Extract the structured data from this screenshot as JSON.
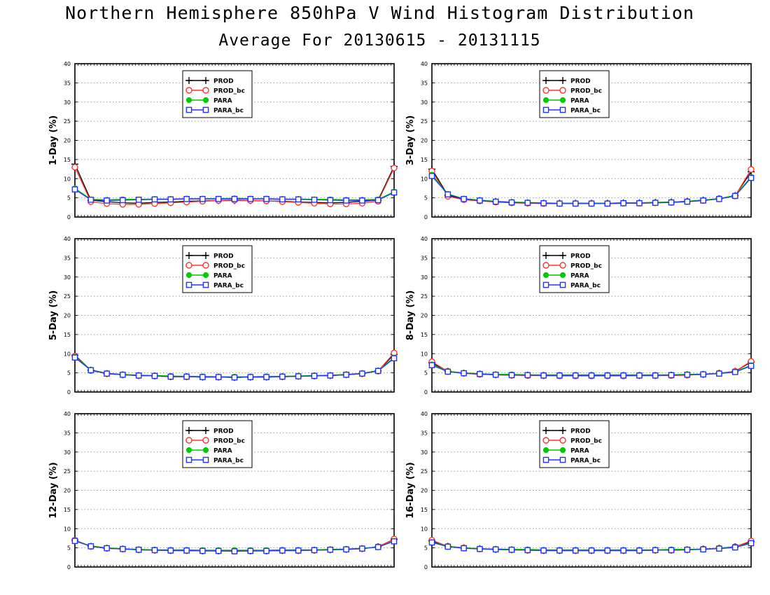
{
  "title": "Northern Hemisphere 850hPa V Wind Histogram Distribution",
  "subtitle": "Average For 20130615 - 20131115",
  "colors": {
    "PROD": "#000000",
    "PROD_bc": "#ff3333",
    "PARA": "#00cc00",
    "PARA_bc": "#2233ff",
    "grid": "#9a9a9a"
  },
  "legend_entries": [
    "PROD",
    "PROD_bc",
    "PARA",
    "PARA_bc"
  ],
  "chart_data": [
    {
      "type": "line",
      "ylabel": "1-Day (%)",
      "ylim": [
        0,
        40
      ],
      "yticks": [
        0,
        5,
        10,
        15,
        20,
        25,
        30,
        35,
        40
      ],
      "grid": true,
      "legend_position": "top-center",
      "x": [
        1,
        2,
        3,
        4,
        5,
        6,
        7,
        8,
        9,
        10,
        11,
        12,
        13,
        14,
        15,
        16,
        17,
        18,
        19,
        20,
        21
      ],
      "series": [
        {
          "name": "PROD",
          "values": [
            13.8,
            4.4,
            4.0,
            3.7,
            3.6,
            3.8,
            3.9,
            4.1,
            4.2,
            4.3,
            4.3,
            4.3,
            4.2,
            4.1,
            3.9,
            3.8,
            3.7,
            3.8,
            4.1,
            4.4,
            13.2
          ]
        },
        {
          "name": "PROD_bc",
          "values": [
            13.0,
            4.0,
            3.5,
            3.3,
            3.3,
            3.5,
            3.7,
            3.9,
            4.1,
            4.3,
            4.4,
            4.3,
            4.2,
            4.0,
            3.8,
            3.6,
            3.4,
            3.4,
            3.6,
            4.1,
            12.8
          ]
        },
        {
          "name": "PARA",
          "values": [
            7.5,
            4.6,
            4.5,
            4.6,
            4.6,
            4.7,
            4.7,
            4.8,
            4.8,
            4.8,
            4.9,
            4.8,
            4.8,
            4.7,
            4.7,
            4.6,
            4.6,
            4.5,
            4.5,
            4.6,
            6.6
          ]
        },
        {
          "name": "PARA_bc",
          "values": [
            7.2,
            4.5,
            4.3,
            4.4,
            4.5,
            4.6,
            4.6,
            4.7,
            4.7,
            4.7,
            4.7,
            4.7,
            4.7,
            4.6,
            4.6,
            4.5,
            4.4,
            4.3,
            4.3,
            4.4,
            6.4
          ]
        }
      ]
    },
    {
      "type": "line",
      "ylabel": "3-Day (%)",
      "ylim": [
        0,
        40
      ],
      "yticks": [
        0,
        5,
        10,
        15,
        20,
        25,
        30,
        35,
        40
      ],
      "grid": true,
      "legend_position": "top-center",
      "x": [
        1,
        2,
        3,
        4,
        5,
        6,
        7,
        8,
        9,
        10,
        11,
        12,
        13,
        14,
        15,
        16,
        17,
        18,
        19,
        20,
        21
      ],
      "series": [
        {
          "name": "PROD",
          "values": [
            12.5,
            5.7,
            4.6,
            4.3,
            4.0,
            3.8,
            3.7,
            3.6,
            3.6,
            3.6,
            3.6,
            3.6,
            3.7,
            3.7,
            3.8,
            3.9,
            4.1,
            4.4,
            4.8,
            5.6,
            11.8
          ]
        },
        {
          "name": "PROD_bc",
          "values": [
            12.0,
            5.4,
            4.5,
            4.2,
            3.9,
            3.7,
            3.6,
            3.5,
            3.5,
            3.5,
            3.5,
            3.5,
            3.6,
            3.6,
            3.7,
            3.8,
            4.0,
            4.3,
            4.8,
            5.5,
            12.4
          ]
        },
        {
          "name": "PARA",
          "values": [
            11.0,
            6.0,
            4.8,
            4.4,
            4.1,
            3.9,
            3.8,
            3.7,
            3.6,
            3.6,
            3.6,
            3.6,
            3.7,
            3.7,
            3.8,
            3.9,
            4.1,
            4.4,
            4.8,
            5.6,
            10.5
          ]
        },
        {
          "name": "PARA_bc",
          "values": [
            10.7,
            5.9,
            4.7,
            4.3,
            4.0,
            3.8,
            3.7,
            3.6,
            3.5,
            3.5,
            3.5,
            3.5,
            3.6,
            3.6,
            3.7,
            3.8,
            4.0,
            4.3,
            4.7,
            5.5,
            10.2
          ]
        }
      ]
    },
    {
      "type": "line",
      "ylabel": "5-Day (%)",
      "ylim": [
        0,
        40
      ],
      "yticks": [
        0,
        5,
        10,
        15,
        20,
        25,
        30,
        35,
        40
      ],
      "grid": true,
      "legend_position": "top-center",
      "x": [
        1,
        2,
        3,
        4,
        5,
        6,
        7,
        8,
        9,
        10,
        11,
        12,
        13,
        14,
        15,
        16,
        17,
        18,
        19,
        20,
        21
      ],
      "series": [
        {
          "name": "PROD",
          "values": [
            9.6,
            5.7,
            4.8,
            4.5,
            4.3,
            4.2,
            4.0,
            4.0,
            3.9,
            3.9,
            3.8,
            3.9,
            3.9,
            4.0,
            4.1,
            4.2,
            4.3,
            4.5,
            4.8,
            5.5,
            9.8
          ]
        },
        {
          "name": "PROD_bc",
          "values": [
            9.4,
            5.6,
            4.8,
            4.5,
            4.3,
            4.2,
            4.0,
            4.0,
            3.9,
            3.9,
            3.8,
            3.9,
            3.9,
            4.0,
            4.1,
            4.2,
            4.3,
            4.5,
            4.8,
            5.5,
            10.2
          ]
        },
        {
          "name": "PARA",
          "values": [
            9.2,
            5.8,
            4.9,
            4.6,
            4.4,
            4.3,
            4.2,
            4.1,
            4.1,
            4.0,
            4.0,
            4.0,
            4.1,
            4.1,
            4.2,
            4.3,
            4.4,
            4.6,
            4.9,
            5.6,
            9.0
          ]
        },
        {
          "name": "PARA_bc",
          "values": [
            9.0,
            5.7,
            4.8,
            4.5,
            4.3,
            4.2,
            4.0,
            4.0,
            3.9,
            3.9,
            3.8,
            3.9,
            3.9,
            4.0,
            4.1,
            4.2,
            4.3,
            4.5,
            4.8,
            5.5,
            8.8
          ]
        }
      ]
    },
    {
      "type": "line",
      "ylabel": "8-Day (%)",
      "ylim": [
        0,
        40
      ],
      "yticks": [
        0,
        5,
        10,
        15,
        20,
        25,
        30,
        35,
        40
      ],
      "grid": true,
      "legend_position": "top-center",
      "x": [
        1,
        2,
        3,
        4,
        5,
        6,
        7,
        8,
        9,
        10,
        11,
        12,
        13,
        14,
        15,
        16,
        17,
        18,
        19,
        20,
        21
      ],
      "series": [
        {
          "name": "PROD",
          "values": [
            7.6,
            5.4,
            4.9,
            4.7,
            4.5,
            4.4,
            4.4,
            4.3,
            4.3,
            4.3,
            4.3,
            4.3,
            4.3,
            4.3,
            4.3,
            4.4,
            4.5,
            4.6,
            4.9,
            5.4,
            7.8
          ]
        },
        {
          "name": "PROD_bc",
          "values": [
            7.9,
            5.4,
            4.9,
            4.6,
            4.5,
            4.4,
            4.3,
            4.3,
            4.2,
            4.2,
            4.2,
            4.2,
            4.2,
            4.3,
            4.3,
            4.3,
            4.4,
            4.6,
            4.9,
            5.4,
            8.0
          ]
        },
        {
          "name": "PARA",
          "values": [
            7.2,
            5.4,
            5.0,
            4.8,
            4.6,
            4.6,
            4.5,
            4.5,
            4.5,
            4.5,
            4.5,
            4.5,
            4.5,
            4.5,
            4.5,
            4.5,
            4.6,
            4.7,
            4.9,
            5.3,
            7.0
          ]
        },
        {
          "name": "PARA_bc",
          "values": [
            7.0,
            5.3,
            4.9,
            4.7,
            4.5,
            4.4,
            4.4,
            4.3,
            4.3,
            4.3,
            4.3,
            4.3,
            4.3,
            4.3,
            4.3,
            4.4,
            4.5,
            4.6,
            4.8,
            5.2,
            6.8
          ]
        }
      ]
    },
    {
      "type": "line",
      "ylabel": "12-Day (%)",
      "ylim": [
        0,
        40
      ],
      "yticks": [
        0,
        5,
        10,
        15,
        20,
        25,
        30,
        35,
        40
      ],
      "grid": true,
      "legend_position": "top-center",
      "x": [
        1,
        2,
        3,
        4,
        5,
        6,
        7,
        8,
        9,
        10,
        11,
        12,
        13,
        14,
        15,
        16,
        17,
        18,
        19,
        20,
        21
      ],
      "series": [
        {
          "name": "PROD",
          "values": [
            7.0,
            5.4,
            4.9,
            4.7,
            4.5,
            4.4,
            4.3,
            4.3,
            4.2,
            4.2,
            4.2,
            4.2,
            4.2,
            4.3,
            4.3,
            4.4,
            4.5,
            4.6,
            4.8,
            5.3,
            7.2
          ]
        },
        {
          "name": "PROD_bc",
          "values": [
            7.0,
            5.4,
            4.9,
            4.7,
            4.5,
            4.4,
            4.3,
            4.3,
            4.2,
            4.2,
            4.1,
            4.2,
            4.2,
            4.3,
            4.3,
            4.4,
            4.5,
            4.6,
            4.8,
            5.3,
            7.3
          ]
        },
        {
          "name": "PARA",
          "values": [
            6.9,
            5.5,
            5.0,
            4.8,
            4.6,
            4.5,
            4.5,
            4.5,
            4.4,
            4.4,
            4.4,
            4.4,
            4.4,
            4.5,
            4.5,
            4.5,
            4.6,
            4.7,
            4.9,
            5.2,
            6.8
          ]
        },
        {
          "name": "PARA_bc",
          "values": [
            6.8,
            5.4,
            4.9,
            4.7,
            4.5,
            4.4,
            4.3,
            4.3,
            4.2,
            4.2,
            4.1,
            4.2,
            4.2,
            4.3,
            4.3,
            4.4,
            4.5,
            4.6,
            4.8,
            5.2,
            6.7
          ]
        }
      ]
    },
    {
      "type": "line",
      "ylabel": "16-Day (%)",
      "ylim": [
        0,
        40
      ],
      "yticks": [
        0,
        5,
        10,
        15,
        20,
        25,
        30,
        35,
        40
      ],
      "grid": true,
      "legend_position": "top-center",
      "x": [
        1,
        2,
        3,
        4,
        5,
        6,
        7,
        8,
        9,
        10,
        11,
        12,
        13,
        14,
        15,
        16,
        17,
        18,
        19,
        20,
        21
      ],
      "series": [
        {
          "name": "PROD",
          "values": [
            6.8,
            5.4,
            5.0,
            4.8,
            4.6,
            4.5,
            4.4,
            4.3,
            4.3,
            4.3,
            4.3,
            4.3,
            4.3,
            4.3,
            4.4,
            4.4,
            4.5,
            4.7,
            4.9,
            5.3,
            6.6
          ]
        },
        {
          "name": "PROD_bc",
          "values": [
            7.0,
            5.4,
            5.0,
            4.7,
            4.6,
            4.5,
            4.4,
            4.3,
            4.3,
            4.3,
            4.3,
            4.3,
            4.3,
            4.3,
            4.4,
            4.4,
            4.5,
            4.7,
            4.9,
            5.3,
            6.8
          ]
        },
        {
          "name": "PARA",
          "values": [
            6.5,
            5.4,
            5.0,
            4.8,
            4.7,
            4.6,
            4.6,
            4.5,
            4.5,
            4.5,
            4.5,
            4.5,
            4.5,
            4.5,
            4.5,
            4.6,
            4.6,
            4.7,
            4.9,
            5.2,
            6.3
          ]
        },
        {
          "name": "PARA_bc",
          "values": [
            6.4,
            5.3,
            4.9,
            4.7,
            4.6,
            4.5,
            4.4,
            4.3,
            4.3,
            4.3,
            4.3,
            4.3,
            4.3,
            4.3,
            4.4,
            4.4,
            4.5,
            4.6,
            4.8,
            5.1,
            6.2
          ]
        }
      ]
    }
  ]
}
